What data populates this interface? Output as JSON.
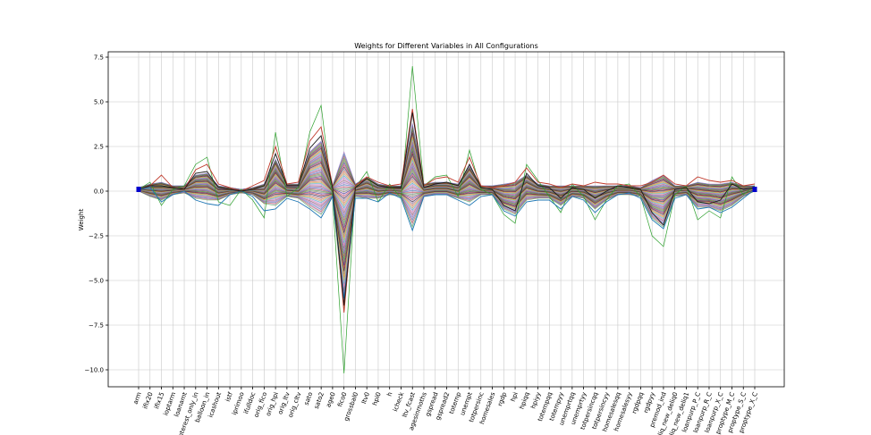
{
  "chart_data": {
    "type": "line",
    "title": "Weights for Different Variables in All Configurations",
    "xlabel": "",
    "ylabel": "Weight",
    "ylim": [
      -11.0,
      7.6
    ],
    "yticks": [
      7.5,
      5.0,
      2.5,
      0.0,
      -2.5,
      -5.0,
      -7.5,
      -10.0
    ],
    "ytick_labels": [
      "7.5",
      "5.0",
      "2.5",
      "0.0",
      "−2.5",
      "−5.0",
      "−7.5",
      "−10.0"
    ],
    "grid": true,
    "legend": "none",
    "categories": [
      "arm",
      "ifix20",
      "ifix15",
      "ioptarm",
      "loanamt",
      "interest_only_in",
      "balloon_in",
      "icashout",
      "istf",
      "iprimoo",
      "ifulldoc",
      "orig_fico",
      "orig_hpi",
      "orig_ltv",
      "orig_cltv",
      "sato",
      "sato2",
      "age0",
      "fico0",
      "grossbal0",
      "ltv0",
      "hpi0",
      "h",
      "icheck",
      "ltv_fcast",
      "agesinmoths",
      "gspread",
      "gspread2",
      "totemp",
      "unempt",
      "totpersinc",
      "homesales",
      "rgdp",
      "hpi",
      "hpiqq",
      "hpiyy",
      "totempqq",
      "totempyy",
      "unemprtqq",
      "unemprtyy",
      "totpersincqq",
      "totpersincyy",
      "homesalesqq",
      "homesalesyy",
      "rgdpqq",
      "rgdpyy",
      "premod_ind",
      "deliq_new_deliq0",
      "deliq_new_deliq1",
      "loanpurp_P_C",
      "loanpurp_R_C",
      "loanpurp_X_C",
      "proptype_M_C",
      "proptype_S_C",
      "proptype_X_C"
    ],
    "series": [
      {
        "values": [
          0.1,
          0.5,
          -0.8,
          0.1,
          0.3,
          1.5,
          1.9,
          -0.6,
          -0.8,
          0.1,
          -0.5,
          -1.5,
          3.3,
          -0.3,
          0.2,
          3.3,
          4.8,
          -0.4,
          -10.2,
          0.2,
          1.1,
          -0.6,
          0.4,
          -0.4,
          7.0,
          0.3,
          0.8,
          0.9,
          -0.3,
          2.3,
          0.1,
          -0.2,
          -1.3,
          -1.8,
          1.5,
          0.6,
          -0.3,
          -1.2,
          0.4,
          -0.3,
          -1.6,
          -0.5,
          0.3,
          0.4,
          -0.3,
          -2.5,
          -3.1,
          -0.2,
          0.3,
          -1.6,
          -1.1,
          -1.5,
          0.8,
          -0.2,
          0.3
        ]
      },
      {
        "values": [
          0.1,
          0.3,
          0.9,
          0.2,
          0.1,
          1.2,
          1.5,
          0.4,
          0.2,
          0.0,
          0.3,
          0.6,
          2.5,
          0.4,
          0.5,
          2.8,
          3.6,
          0.3,
          -6.8,
          0.3,
          0.8,
          0.5,
          0.3,
          0.4,
          4.6,
          0.3,
          0.7,
          0.8,
          0.5,
          1.9,
          0.3,
          0.2,
          0.3,
          0.5,
          1.3,
          0.5,
          0.4,
          0.2,
          0.4,
          0.3,
          0.5,
          0.4,
          0.4,
          0.3,
          0.3,
          0.5,
          0.9,
          0.4,
          0.3,
          0.8,
          0.6,
          0.5,
          0.6,
          0.3,
          0.4
        ]
      },
      {
        "values": [
          0.1,
          0.2,
          -0.6,
          -0.2,
          0.0,
          -0.5,
          -0.7,
          -0.8,
          -0.2,
          0.0,
          -0.3,
          -1.1,
          -1.0,
          -0.4,
          -0.6,
          -1.0,
          -1.5,
          -0.3,
          -6.0,
          -0.4,
          -0.4,
          -0.6,
          -0.1,
          -0.4,
          -2.2,
          -0.3,
          -0.2,
          -0.2,
          -0.5,
          -0.8,
          -0.3,
          -0.2,
          -1.1,
          -1.4,
          -0.6,
          -0.5,
          -0.5,
          -1.0,
          -0.3,
          -0.5,
          -1.2,
          -0.6,
          -0.2,
          -0.1,
          -0.4,
          -1.6,
          -2.1,
          -0.4,
          -0.2,
          -1.0,
          -0.9,
          -1.2,
          -0.9,
          -0.4,
          0.1
        ]
      },
      {
        "values": [
          0.1,
          0.3,
          0.3,
          0.2,
          0.1,
          1.0,
          1.1,
          0.2,
          0.1,
          0.0,
          0.1,
          0.3,
          2.1,
          0.3,
          0.3,
          2.4,
          3.1,
          0.2,
          -6.4,
          0.2,
          0.7,
          0.3,
          0.2,
          0.2,
          4.4,
          0.2,
          0.4,
          0.5,
          0.3,
          1.5,
          0.2,
          0.1,
          -0.8,
          -1.1,
          1.0,
          0.3,
          0.2,
          -0.4,
          0.2,
          0.1,
          -0.4,
          0.0,
          0.3,
          0.2,
          0.1,
          -1.2,
          -1.9,
          0.1,
          0.2,
          -0.6,
          -0.7,
          -0.5,
          0.4,
          0.1,
          0.2
        ]
      }
    ],
    "band": {
      "upper": [
        0.2,
        0.4,
        0.5,
        0.3,
        0.3,
        0.9,
        1.0,
        0.3,
        0.2,
        0.1,
        0.2,
        0.4,
        1.8,
        0.4,
        0.4,
        2.2,
        2.8,
        0.3,
        2.2,
        0.4,
        0.8,
        0.4,
        0.3,
        0.3,
        3.8,
        0.4,
        0.5,
        0.5,
        0.4,
        1.4,
        0.3,
        0.3,
        0.4,
        0.5,
        0.9,
        0.4,
        0.3,
        0.3,
        0.3,
        0.3,
        0.3,
        0.3,
        0.3,
        0.3,
        0.2,
        0.6,
        0.9,
        0.3,
        0.3,
        0.5,
        0.4,
        0.4,
        0.5,
        0.3,
        0.3
      ],
      "lower": [
        0.0,
        -0.3,
        -0.5,
        -0.2,
        -0.1,
        -0.4,
        -0.5,
        -0.5,
        -0.2,
        -0.1,
        -0.2,
        -0.7,
        -0.8,
        -0.3,
        -0.4,
        -0.9,
        -1.3,
        -0.3,
        -6.6,
        -0.3,
        -0.4,
        -0.4,
        -0.2,
        -0.3,
        -2.0,
        -0.3,
        -0.2,
        -0.2,
        -0.4,
        -0.6,
        -0.2,
        -0.2,
        -1.0,
        -1.3,
        -0.5,
        -0.4,
        -0.4,
        -0.8,
        -0.3,
        -0.4,
        -1.0,
        -0.5,
        -0.2,
        -0.2,
        -0.3,
        -1.5,
        -2.0,
        -0.3,
        -0.2,
        -0.9,
        -0.9,
        -1.1,
        -0.8,
        -0.3,
        0.0
      ]
    },
    "colors": [
      "#2ca02c",
      "#c0392b",
      "#1f77b4",
      "#9467bd",
      "#8c564b",
      "#e377c2",
      "#17becf",
      "#bcbd22",
      "#ff7f0e",
      "#7f7f7f",
      "#000000",
      "#d62728",
      "#1a1a80",
      "#6b8e23"
    ],
    "endpoint_marker_color": "#0000cc"
  }
}
